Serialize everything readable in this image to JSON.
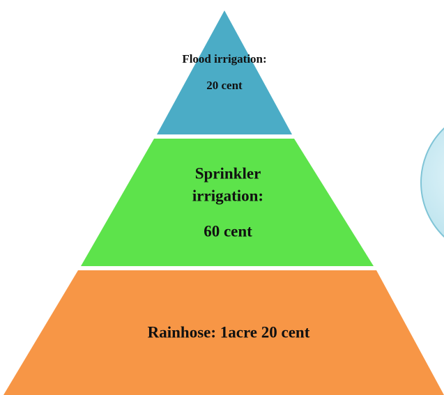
{
  "pyramid": {
    "layers": [
      {
        "lines": [
          "Flood irrigation:",
          "20 cent"
        ]
      },
      {
        "lines": [
          "Sprinkler",
          "irrigation:",
          "60 cent"
        ]
      },
      {
        "lines": [
          "Rainhose: 1acre 20 cent"
        ]
      }
    ]
  }
}
